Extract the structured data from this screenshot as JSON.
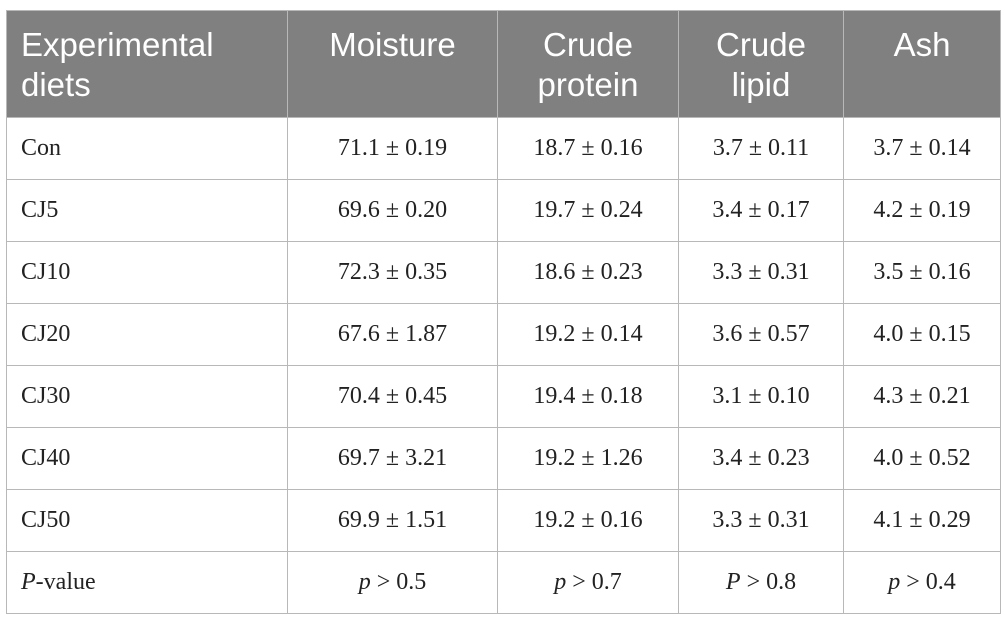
{
  "table": {
    "header": [
      "Experimental diets",
      "Moisture",
      "Crude protein",
      "Crude lipid",
      "Ash"
    ],
    "rows": [
      [
        "Con",
        "71.1 ± 0.19",
        "18.7 ± 0.16",
        "3.7 ± 0.11",
        "3.7 ± 0.14"
      ],
      [
        "CJ5",
        "69.6 ± 0.20",
        "19.7 ± 0.24",
        "3.4 ± 0.17",
        "4.2 ± 0.19"
      ],
      [
        "CJ10",
        "72.3 ± 0.35",
        "18.6 ± 0.23",
        "3.3 ± 0.31",
        "3.5 ± 0.16"
      ],
      [
        "CJ20",
        "67.6 ± 1.87",
        "19.2 ± 0.14",
        "3.6 ± 0.57",
        "4.0 ± 0.15"
      ],
      [
        "CJ30",
        "70.4 ± 0.45",
        "19.4 ± 0.18",
        "3.1 ± 0.10",
        "4.3 ± 0.21"
      ],
      [
        "CJ40",
        "69.7 ± 3.21",
        "19.2 ± 1.26",
        "3.4 ± 0.23",
        "4.0 ± 0.52"
      ],
      [
        "CJ50",
        "69.9 ± 1.51",
        "19.2 ± 0.16",
        "3.3 ± 0.31",
        "4.1 ± 0.29"
      ],
      [
        "P-value",
        "p > 0.5",
        "p > 0.7",
        "P > 0.8",
        "p > 0.4"
      ]
    ]
  }
}
